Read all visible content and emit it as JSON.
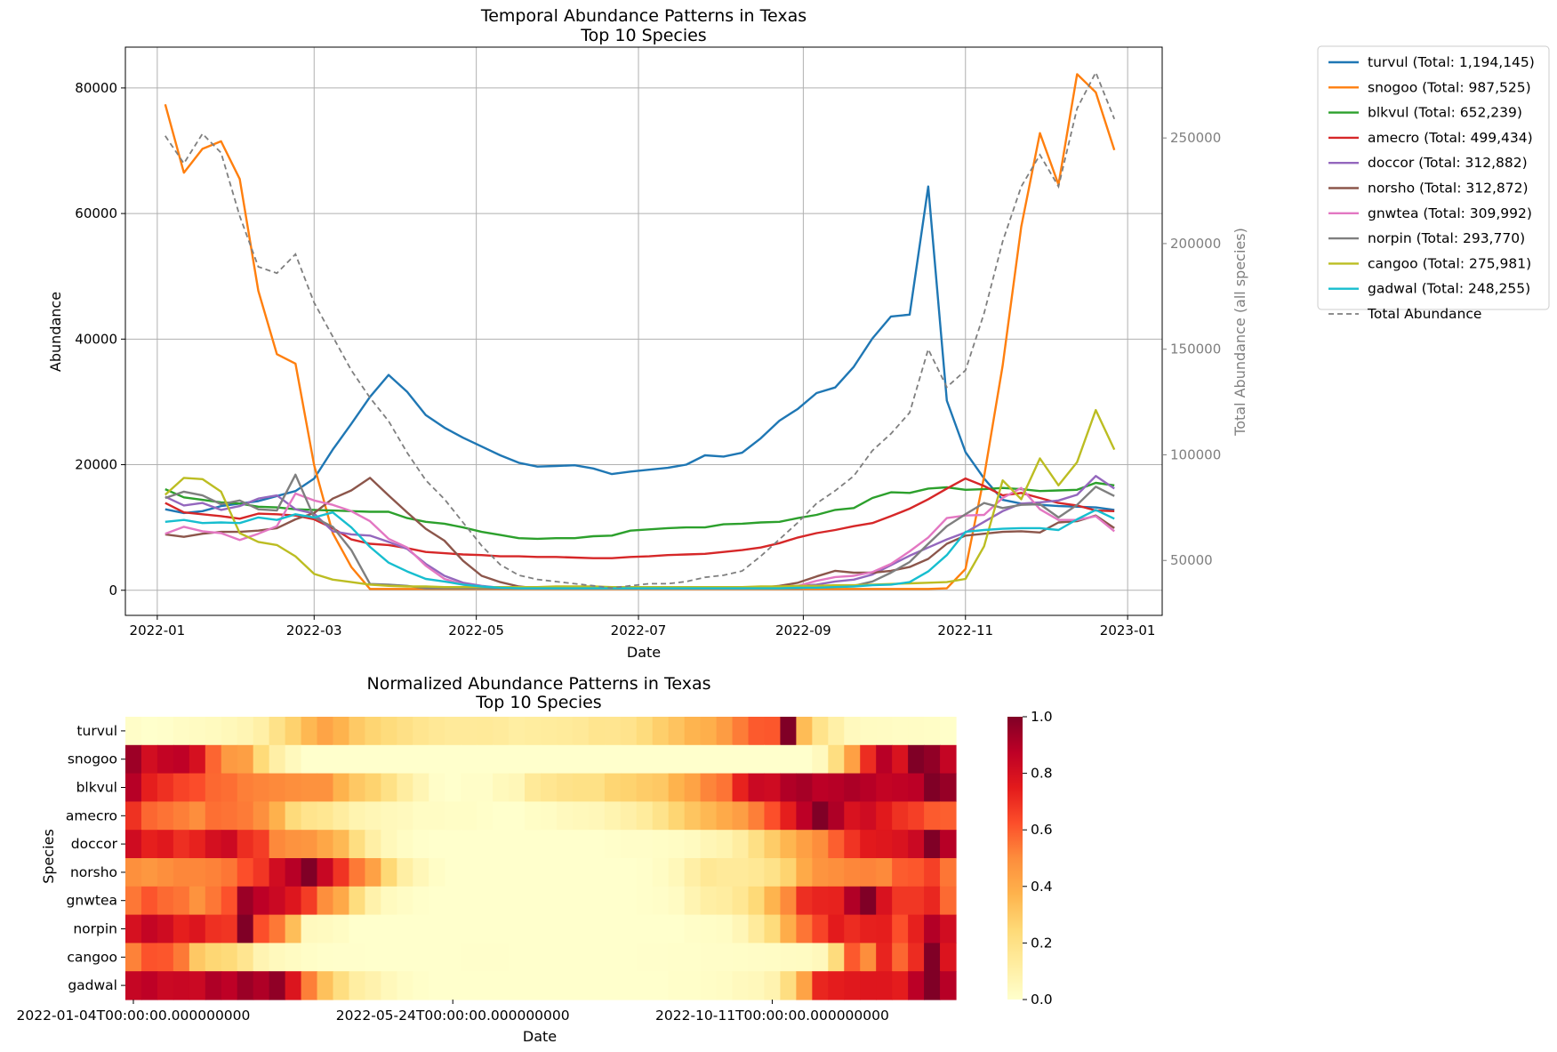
{
  "chart_data": [
    {
      "type": "line",
      "title": "Temporal Abundance Patterns in Texas\nTop 10 Species",
      "xlabel": "Date",
      "ylabel": "Abundance",
      "y2label": "Total Abundance (all species)",
      "xlim": [
        "2021-12-20",
        "2023-01-14"
      ],
      "ylim": [
        -4000,
        86500
      ],
      "y2lim": [
        24000,
        293000
      ],
      "grid": true,
      "legend_position": "outside-right",
      "x_ticks": [
        "2022-01",
        "2022-03",
        "2022-05",
        "2022-07",
        "2022-09",
        "2022-11",
        "2023-01"
      ],
      "y_ticks": [
        "0",
        "20000",
        "40000",
        "60000",
        "80000"
      ],
      "y2_ticks": [
        "50000",
        "100000",
        "150000",
        "200000",
        "250000"
      ],
      "dates": [
        "2022-01-04",
        "2022-01-11",
        "2022-01-18",
        "2022-01-25",
        "2022-02-01",
        "2022-02-08",
        "2022-02-15",
        "2022-02-22",
        "2022-03-01",
        "2022-03-08",
        "2022-03-15",
        "2022-03-22",
        "2022-03-29",
        "2022-04-05",
        "2022-04-12",
        "2022-04-19",
        "2022-04-26",
        "2022-05-03",
        "2022-05-10",
        "2022-05-17",
        "2022-05-24",
        "2022-05-31",
        "2022-06-07",
        "2022-06-14",
        "2022-06-21",
        "2022-06-28",
        "2022-07-05",
        "2022-07-12",
        "2022-07-19",
        "2022-07-26",
        "2022-08-02",
        "2022-08-09",
        "2022-08-16",
        "2022-08-23",
        "2022-08-30",
        "2022-09-06",
        "2022-09-13",
        "2022-09-20",
        "2022-09-27",
        "2022-10-04",
        "2022-10-11",
        "2022-10-18",
        "2022-10-25",
        "2022-11-01",
        "2022-11-08",
        "2022-11-15",
        "2022-11-22",
        "2022-11-29",
        "2022-12-06",
        "2022-12-13",
        "2022-12-20",
        "2022-12-27"
      ],
      "series": [
        {
          "name": "turvul (Total: 1,194,145)",
          "color": "#1f77b4",
          "values": [
            12900,
            12300,
            12600,
            13400,
            13800,
            14200,
            15000,
            15800,
            17800,
            22400,
            26500,
            30800,
            34300,
            31600,
            27900,
            25900,
            24300,
            22900,
            21500,
            20300,
            19700,
            19800,
            19900,
            19400,
            18500,
            18900,
            19200,
            19500,
            20000,
            21500,
            21300,
            21900,
            24200,
            27000,
            28900,
            31400,
            32300,
            35600,
            40100,
            43600,
            43900,
            64300,
            30200,
            22000,
            17800,
            14400,
            13800,
            13600,
            13400,
            13300,
            13200,
            12800
          ]
        },
        {
          "name": "snogoo (Total: 987,525)",
          "color": "#ff7f0e",
          "values": [
            77400,
            66500,
            70300,
            71500,
            65500,
            47700,
            37600,
            36100,
            19900,
            9100,
            3700,
            200,
            200,
            200,
            200,
            200,
            200,
            200,
            200,
            200,
            200,
            200,
            200,
            200,
            200,
            200,
            200,
            200,
            200,
            200,
            200,
            200,
            200,
            200,
            200,
            200,
            200,
            200,
            200,
            200,
            200,
            200,
            300,
            3400,
            18100,
            35800,
            57900,
            72800,
            64600,
            82200,
            79300,
            70100
          ]
        },
        {
          "name": "blkvul (Total: 652,239)",
          "color": "#2ca02c",
          "values": [
            16100,
            14800,
            14400,
            14000,
            13800,
            13300,
            13200,
            12900,
            12800,
            12700,
            12600,
            12500,
            12500,
            11500,
            10900,
            10600,
            10000,
            9300,
            8800,
            8300,
            8200,
            8300,
            8300,
            8600,
            8700,
            9500,
            9700,
            9900,
            10000,
            10000,
            10500,
            10600,
            10800,
            10900,
            11500,
            12000,
            12800,
            13100,
            14700,
            15600,
            15500,
            16200,
            16400,
            16000,
            16100,
            16300,
            16100,
            15800,
            15900,
            16000,
            17100,
            16700
          ]
        },
        {
          "name": "amecro (Total: 499,434)",
          "color": "#d62728",
          "values": [
            13900,
            12400,
            12100,
            11800,
            11400,
            12200,
            12100,
            11900,
            11300,
            9900,
            8100,
            7400,
            7200,
            6700,
            6100,
            5900,
            5700,
            5600,
            5400,
            5400,
            5300,
            5300,
            5200,
            5100,
            5100,
            5300,
            5400,
            5600,
            5700,
            5800,
            6100,
            6400,
            6800,
            7500,
            8400,
            9100,
            9600,
            10200,
            10700,
            11800,
            13000,
            14500,
            16200,
            17800,
            16600,
            15100,
            15500,
            14700,
            13900,
            13500,
            12700,
            12600
          ]
        },
        {
          "name": "doccor (Total: 312,882)",
          "color": "#9467bd",
          "values": [
            14900,
            13500,
            13900,
            12800,
            13400,
            14600,
            15100,
            12900,
            12200,
            9400,
            8900,
            8700,
            7700,
            6600,
            4200,
            2300,
            1200,
            700,
            400,
            300,
            300,
            300,
            300,
            300,
            300,
            300,
            300,
            300,
            300,
            300,
            400,
            500,
            500,
            600,
            700,
            900,
            1400,
            1700,
            2500,
            4000,
            5500,
            6800,
            8100,
            9200,
            10900,
            12600,
            13800,
            14000,
            14300,
            15200,
            18200,
            16200
          ]
        },
        {
          "name": "norsho (Total: 312,872)",
          "color": "#8c564b",
          "values": [
            8900,
            8500,
            9000,
            9300,
            9300,
            9500,
            9900,
            11300,
            12300,
            14600,
            15900,
            17900,
            15100,
            12400,
            9800,
            7900,
            4700,
            2300,
            1300,
            600,
            300,
            300,
            300,
            300,
            300,
            300,
            300,
            300,
            300,
            300,
            300,
            300,
            400,
            700,
            1200,
            2200,
            3100,
            2800,
            2800,
            3100,
            3700,
            5000,
            7400,
            8700,
            9000,
            9300,
            9400,
            9200,
            10800,
            11000,
            11900,
            9900
          ]
        },
        {
          "name": "gnwtea (Total: 309,992)",
          "color": "#e377c2",
          "values": [
            9000,
            10100,
            9400,
            9100,
            8000,
            9000,
            10200,
            15400,
            14300,
            13600,
            12600,
            11000,
            8200,
            6800,
            3900,
            1800,
            900,
            600,
            400,
            300,
            300,
            300,
            300,
            300,
            300,
            300,
            300,
            300,
            300,
            300,
            300,
            300,
            400,
            500,
            700,
            1500,
            2100,
            2300,
            2900,
            4200,
            6200,
            8400,
            11500,
            11900,
            12000,
            14700,
            16300,
            12900,
            11200,
            11200,
            11800,
            9400
          ]
        },
        {
          "name": "norpin (Total: 293,770)",
          "color": "#7f7f7f",
          "values": [
            14700,
            15700,
            15100,
            13700,
            14300,
            12900,
            12700,
            18400,
            11600,
            10100,
            6400,
            1000,
            900,
            700,
            300,
            300,
            300,
            300,
            300,
            300,
            300,
            300,
            300,
            300,
            300,
            300,
            300,
            300,
            300,
            300,
            300,
            300,
            300,
            300,
            300,
            500,
            600,
            700,
            1400,
            2800,
            4500,
            7400,
            10200,
            12100,
            13900,
            13100,
            13600,
            13700,
            11600,
            13600,
            16500,
            15000
          ]
        },
        {
          "name": "cangoo (Total: 275,981)",
          "color": "#bcbd22",
          "values": [
            15200,
            17900,
            17700,
            15700,
            9100,
            7700,
            7200,
            5400,
            2600,
            1700,
            1300,
            900,
            700,
            600,
            600,
            500,
            500,
            500,
            500,
            500,
            500,
            600,
            600,
            600,
            500,
            500,
            500,
            500,
            500,
            500,
            500,
            500,
            600,
            600,
            700,
            700,
            800,
            800,
            900,
            1000,
            1100,
            1200,
            1300,
            1800,
            7000,
            17500,
            14500,
            21000,
            16700,
            20400,
            28700,
            22400
          ]
        },
        {
          "name": "gadwal (Total: 248,255)",
          "color": "#17becf",
          "values": [
            10900,
            11200,
            10700,
            10800,
            10700,
            11600,
            11200,
            12100,
            11600,
            12400,
            10000,
            6900,
            4400,
            3000,
            1800,
            1400,
            900,
            600,
            400,
            300,
            300,
            300,
            300,
            300,
            300,
            300,
            300,
            300,
            300,
            300,
            300,
            300,
            300,
            300,
            400,
            400,
            500,
            600,
            800,
            900,
            1300,
            3000,
            5600,
            9300,
            9600,
            9800,
            9900,
            9900,
            9600,
            11300,
            12800,
            11400
          ]
        }
      ],
      "total_series": {
        "name": "Total Abundance",
        "color": "#7f7f7f",
        "style": "dashed",
        "values": [
          251000,
          238000,
          252000,
          243000,
          213000,
          189000,
          186000,
          195000,
          172000,
          156000,
          140000,
          127000,
          116000,
          101000,
          88000,
          79000,
          68000,
          57000,
          48000,
          43000,
          41000,
          40000,
          39000,
          38000,
          37000,
          38000,
          39000,
          39000,
          40000,
          42000,
          43000,
          45000,
          52000,
          60000,
          68000,
          77000,
          83000,
          90000,
          102000,
          110000,
          120000,
          150000,
          132000,
          140000,
          167000,
          201000,
          227000,
          242000,
          227000,
          264000,
          281000,
          259000
        ]
      }
    },
    {
      "type": "heatmap",
      "title": "Normalized Abundance Patterns in Texas\nTop 10 Species",
      "xlabel": "Date",
      "ylabel": "Species",
      "rows": [
        "turvul",
        "snogoo",
        "blkvul",
        "amecro",
        "doccor",
        "norsho",
        "gnwtea",
        "norpin",
        "cangoo",
        "gadwal"
      ],
      "x_tick_labels": [
        "2022-01-04T00:00:00.000000000",
        "2022-05-24T00:00:00.000000000",
        "2022-10-11T00:00:00.000000000"
      ],
      "x_tick_indices": [
        0,
        20,
        40
      ],
      "colorbar_ticks": [
        "0.0",
        "0.2",
        "0.4",
        "0.6",
        "0.8",
        "1.0"
      ],
      "colormap": "YlOrRd",
      "vmin": 0,
      "vmax": 1
    }
  ]
}
